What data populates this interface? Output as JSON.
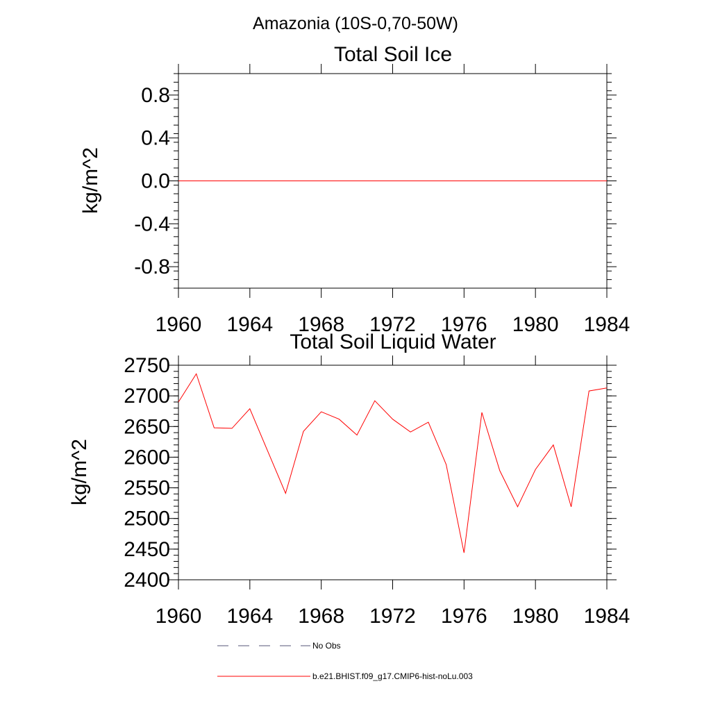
{
  "figure_title": "Amazonia (10S-0,70-50W)",
  "colors": {
    "series": "#ff0000",
    "obs": "#555577",
    "axis": "#000000"
  },
  "chart_data": [
    {
      "type": "line",
      "title": "Total Soil Ice",
      "xlabel": "",
      "ylabel": "kg/m^2",
      "xlim": [
        1960,
        1984
      ],
      "ylim": [
        -1.0,
        1.0
      ],
      "x_ticks": [
        1960,
        1964,
        1968,
        1972,
        1976,
        1980,
        1984
      ],
      "y_ticks": [
        -0.8,
        -0.4,
        0.0,
        0.4,
        0.8
      ],
      "y_tick_labels": [
        "-0.8",
        "-0.4",
        "0.0",
        "0.4",
        "0.8"
      ],
      "grid": false,
      "x": [
        1960,
        1961,
        1962,
        1963,
        1964,
        1965,
        1966,
        1967,
        1968,
        1969,
        1970,
        1971,
        1972,
        1973,
        1974,
        1975,
        1976,
        1977,
        1978,
        1979,
        1980,
        1981,
        1982,
        1983,
        1984
      ],
      "series": [
        {
          "values": [
            0,
            0,
            0,
            0,
            0,
            0,
            0,
            0,
            0,
            0,
            0,
            0,
            0,
            0,
            0,
            0,
            0,
            0,
            0,
            0,
            0,
            0,
            0,
            0,
            0
          ]
        }
      ]
    },
    {
      "type": "line",
      "title": "Total Soil Liquid Water",
      "xlabel": "",
      "ylabel": "kg/m^2",
      "xlim": [
        1960,
        1984
      ],
      "ylim": [
        2400,
        2750
      ],
      "x_ticks": [
        1960,
        1964,
        1968,
        1972,
        1976,
        1980,
        1984
      ],
      "y_ticks": [
        2400,
        2450,
        2500,
        2550,
        2600,
        2650,
        2700,
        2750
      ],
      "y_tick_labels": [
        "2400",
        "2450",
        "2500",
        "2550",
        "2600",
        "2650",
        "2700",
        "2750"
      ],
      "grid": false,
      "x": [
        1960,
        1961,
        1962,
        1963,
        1964,
        1965,
        1966,
        1967,
        1968,
        1969,
        1970,
        1971,
        1972,
        1973,
        1974,
        1975,
        1976,
        1977,
        1978,
        1979,
        1980,
        1981,
        1982,
        1983,
        1984
      ],
      "series": [
        {
          "values": [
            2690,
            2736,
            2648,
            2647,
            2679,
            2610,
            2541,
            2642,
            2674,
            2662,
            2636,
            2692,
            2662,
            2641,
            2657,
            2588,
            2444,
            2673,
            2578,
            2519,
            2580,
            2620,
            2519,
            2708,
            2713
          ]
        }
      ]
    }
  ],
  "legend": {
    "placement": "bottom",
    "items": [
      {
        "label": "No Obs",
        "style": "dashed"
      },
      {
        "label": "b.e21.BHIST.f09_g17.CMIP6-hist-noLu.003",
        "style": "solid"
      }
    ]
  }
}
